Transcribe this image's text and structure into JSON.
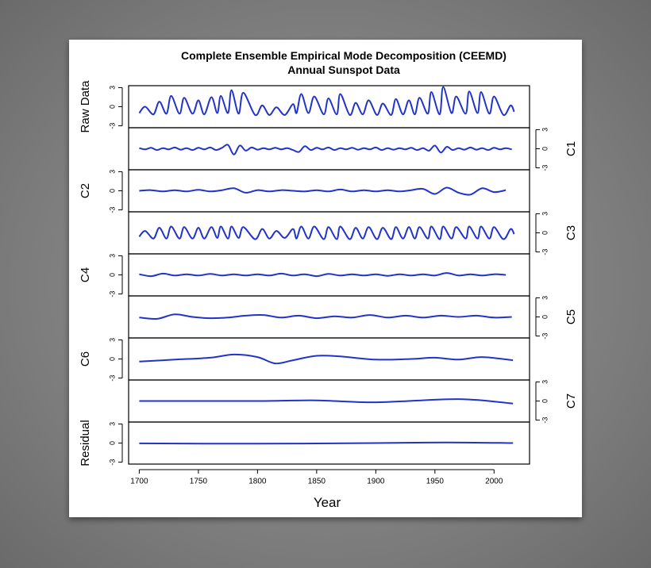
{
  "chart_data": [
    {
      "type": "line",
      "title": "Complete Ensemble Empirical Mode Decomposition (CEEMD)",
      "subtitle": "Annual Sunspot Data",
      "ylabel": "Raw Data",
      "axis_side": "left",
      "color": "#2233cc",
      "xlim": [
        1691,
        2030
      ],
      "ylim": [
        -3.3,
        3.3
      ],
      "yticks": [
        -3,
        0,
        3
      ],
      "x": [
        1700,
        1705,
        1712,
        1717,
        1723,
        1727,
        1734,
        1738,
        1745,
        1750,
        1755,
        1761,
        1766,
        1769,
        1775,
        1778,
        1784,
        1788,
        1798,
        1804,
        1810,
        1816,
        1823,
        1830,
        1833,
        1837,
        1843,
        1848,
        1856,
        1860,
        1867,
        1870,
        1878,
        1883,
        1889,
        1894,
        1901,
        1906,
        1913,
        1917,
        1923,
        1928,
        1933,
        1937,
        1944,
        1947,
        1954,
        1957,
        1964,
        1968,
        1976,
        1979,
        1986,
        1989,
        1996,
        2000,
        2008,
        2014,
        2017
      ],
      "values": [
        -1.0,
        0,
        -1.2,
        0.8,
        -1.1,
        1.7,
        -1.1,
        1.4,
        -1.1,
        1.0,
        -1.2,
        1.5,
        -1.0,
        1.7,
        -1.0,
        2.6,
        -1.1,
        2.2,
        -1.3,
        0.2,
        -1.3,
        -0.1,
        -1.3,
        0.4,
        -1.0,
        2.0,
        -1.0,
        1.6,
        -1.2,
        1.3,
        -1.2,
        2.0,
        -1.3,
        0.6,
        -1.2,
        1.0,
        -1.3,
        0.5,
        -1.3,
        1.2,
        -1.2,
        1.0,
        -1.2,
        1.4,
        -1.1,
        2.3,
        -1.2,
        3.1,
        -1.0,
        1.6,
        -1.1,
        2.4,
        -1.0,
        2.3,
        -1.1,
        1.6,
        -1.3,
        0.2,
        -0.8
      ]
    },
    {
      "type": "line",
      "ylabel": "C1",
      "axis_side": "right",
      "color": "#2233cc",
      "xlim": [
        1691,
        2030
      ],
      "ylim": [
        -3.3,
        3.3
      ],
      "yticks": [
        -3,
        0,
        3
      ],
      "x": [
        1700,
        1705,
        1710,
        1715,
        1720,
        1725,
        1730,
        1735,
        1740,
        1745,
        1750,
        1755,
        1760,
        1765,
        1770,
        1775,
        1780,
        1785,
        1790,
        1795,
        1800,
        1805,
        1810,
        1815,
        1820,
        1825,
        1830,
        1835,
        1840,
        1845,
        1850,
        1855,
        1860,
        1865,
        1870,
        1875,
        1880,
        1885,
        1890,
        1895,
        1900,
        1905,
        1910,
        1915,
        1920,
        1925,
        1930,
        1935,
        1940,
        1945,
        1950,
        1955,
        1960,
        1965,
        1970,
        1975,
        1980,
        1985,
        1990,
        1995,
        2000,
        2005,
        2010,
        2015
      ],
      "values": [
        0.1,
        -0.1,
        0.15,
        -0.2,
        0.1,
        -0.1,
        0.2,
        -0.15,
        0.1,
        -0.2,
        0.15,
        -0.1,
        0.2,
        -0.2,
        0.15,
        0.6,
        -0.9,
        0.5,
        -0.3,
        0.2,
        -0.15,
        0.1,
        -0.1,
        0.15,
        -0.1,
        0.1,
        -0.2,
        -0.5,
        0.4,
        -0.2,
        0.15,
        -0.1,
        0.2,
        -0.2,
        0.1,
        -0.1,
        0.15,
        -0.15,
        0.1,
        -0.1,
        0.2,
        -0.2,
        0.1,
        -0.15,
        0.1,
        -0.1,
        0.15,
        -0.2,
        0.1,
        -0.3,
        0.5,
        -0.6,
        0.3,
        -0.2,
        0.1,
        -0.15,
        0.2,
        -0.15,
        0.1,
        -0.2,
        0.15,
        -0.1,
        0.1,
        -0.1
      ]
    },
    {
      "type": "line",
      "ylabel": "C2",
      "axis_side": "left",
      "color": "#2233cc",
      "xlim": [
        1691,
        2030
      ],
      "ylim": [
        -3.3,
        3.3
      ],
      "yticks": [
        -3,
        0,
        3
      ],
      "x": [
        1700,
        1710,
        1720,
        1730,
        1740,
        1750,
        1760,
        1770,
        1780,
        1790,
        1800,
        1810,
        1820,
        1830,
        1840,
        1850,
        1860,
        1870,
        1880,
        1890,
        1900,
        1910,
        1920,
        1930,
        1940,
        1950,
        1960,
        1970,
        1980,
        1990,
        2000,
        2010
      ],
      "values": [
        0,
        0.1,
        -0.1,
        0.1,
        -0.1,
        0.15,
        -0.1,
        0.1,
        0.4,
        -0.3,
        0.1,
        -0.1,
        0.1,
        0,
        -0.1,
        0.1,
        -0.1,
        0.2,
        -0.1,
        0.1,
        -0.1,
        0.1,
        -0.1,
        0.1,
        0.3,
        -0.5,
        0.5,
        -0.3,
        -0.6,
        0.4,
        -0.2,
        0.1
      ]
    },
    {
      "type": "line",
      "ylabel": "C3",
      "axis_side": "right",
      "color": "#2233cc",
      "xlim": [
        1691,
        2030
      ],
      "ylim": [
        -3.3,
        3.3
      ],
      "yticks": [
        -3,
        0,
        3
      ],
      "x": [
        1700,
        1705,
        1712,
        1717,
        1723,
        1727,
        1734,
        1738,
        1745,
        1750,
        1755,
        1761,
        1766,
        1769,
        1775,
        1778,
        1784,
        1788,
        1798,
        1804,
        1810,
        1816,
        1823,
        1830,
        1833,
        1837,
        1843,
        1848,
        1856,
        1860,
        1867,
        1870,
        1878,
        1883,
        1889,
        1894,
        1901,
        1906,
        1913,
        1917,
        1923,
        1928,
        1933,
        1937,
        1944,
        1947,
        1954,
        1957,
        1964,
        1968,
        1976,
        1979,
        1986,
        1989,
        1996,
        2000,
        2008,
        2014,
        2017
      ],
      "values": [
        -0.6,
        0.3,
        -0.9,
        0.8,
        -0.9,
        1.0,
        -0.9,
        0.9,
        -0.9,
        0.8,
        -0.9,
        0.9,
        -0.8,
        1.0,
        -0.9,
        1.0,
        -0.8,
        0.9,
        -1.0,
        0.6,
        -0.9,
        0.3,
        -0.8,
        0.6,
        -0.9,
        1.0,
        -0.9,
        1.0,
        -1.0,
        0.9,
        -1.0,
        1.0,
        -1.0,
        0.8,
        -0.9,
        0.9,
        -1.0,
        0.8,
        -1.0,
        0.9,
        -0.9,
        0.9,
        -0.9,
        0.9,
        -0.9,
        1.0,
        -1.0,
        1.0,
        -0.9,
        0.9,
        -0.9,
        1.0,
        -0.9,
        1.0,
        -0.9,
        0.9,
        -1.0,
        0.6,
        -0.2
      ]
    },
    {
      "type": "line",
      "ylabel": "C4",
      "axis_side": "left",
      "color": "#2233cc",
      "xlim": [
        1691,
        2030
      ],
      "ylim": [
        -3.3,
        3.3
      ],
      "yticks": [
        -3,
        0,
        3
      ],
      "x": [
        1700,
        1710,
        1720,
        1730,
        1740,
        1750,
        1760,
        1770,
        1780,
        1790,
        1800,
        1810,
        1820,
        1830,
        1840,
        1850,
        1860,
        1870,
        1880,
        1890,
        1900,
        1910,
        1920,
        1930,
        1940,
        1950,
        1960,
        1970,
        1980,
        1990,
        2000,
        2010
      ],
      "values": [
        0.1,
        -0.2,
        0.2,
        -0.1,
        0.1,
        -0.1,
        0.15,
        -0.1,
        0.1,
        -0.1,
        0.1,
        -0.1,
        0.2,
        -0.1,
        0.1,
        -0.2,
        0.15,
        -0.1,
        0.1,
        -0.1,
        0.1,
        -0.15,
        0.1,
        -0.1,
        0.1,
        -0.1,
        0.3,
        -0.1,
        0.1,
        -0.1,
        0.1,
        0
      ]
    },
    {
      "type": "line",
      "ylabel": "C5",
      "axis_side": "right",
      "color": "#2233cc",
      "xlim": [
        1691,
        2030
      ],
      "ylim": [
        -3.3,
        3.3
      ],
      "yticks": [
        -3,
        0,
        3
      ],
      "x": [
        1700,
        1715,
        1730,
        1745,
        1760,
        1775,
        1790,
        1805,
        1820,
        1835,
        1850,
        1865,
        1880,
        1895,
        1910,
        1925,
        1940,
        1955,
        1970,
        1985,
        2000,
        2015
      ],
      "values": [
        -0.1,
        -0.3,
        0.4,
        0,
        -0.2,
        -0.1,
        0.2,
        0.3,
        -0.1,
        0.2,
        -0.2,
        0.1,
        -0.1,
        0.3,
        -0.1,
        0.2,
        -0.1,
        0.2,
        0,
        0.2,
        -0.1,
        0
      ]
    },
    {
      "type": "line",
      "ylabel": "C6",
      "axis_side": "left",
      "color": "#2233cc",
      "xlim": [
        1691,
        2030
      ],
      "ylim": [
        -3.3,
        3.3
      ],
      "yticks": [
        -3,
        0,
        3
      ],
      "x": [
        1700,
        1730,
        1760,
        1780,
        1800,
        1815,
        1830,
        1850,
        1870,
        1900,
        1930,
        1950,
        1970,
        1990,
        2016
      ],
      "values": [
        -0.4,
        -0.1,
        0.2,
        0.7,
        0.3,
        -0.7,
        -0.2,
        0.5,
        0.4,
        -0.1,
        0,
        0.2,
        -0.1,
        0.3,
        -0.2
      ]
    },
    {
      "type": "line",
      "ylabel": "C7",
      "axis_side": "right",
      "color": "#2233cc",
      "xlim": [
        1691,
        2030
      ],
      "ylim": [
        -3.3,
        3.3
      ],
      "yticks": [
        -3,
        0,
        3
      ],
      "x": [
        1700,
        1750,
        1800,
        1850,
        1900,
        1970,
        2016
      ],
      "values": [
        0,
        0,
        0,
        0.1,
        -0.2,
        0.3,
        -0.4
      ]
    },
    {
      "type": "line",
      "ylabel": "Residual",
      "axis_side": "left",
      "color": "#2233cc",
      "xlim": [
        1691,
        2030
      ],
      "ylim": [
        -3.3,
        3.3
      ],
      "yticks": [
        -3,
        0,
        3
      ],
      "xlabel": "Year",
      "xticks": [
        1700,
        1750,
        1800,
        1850,
        1900,
        1950,
        2000
      ],
      "x": [
        1700,
        1800,
        1900,
        1960,
        2016
      ],
      "values": [
        -0.05,
        -0.1,
        0,
        0.1,
        0
      ]
    }
  ]
}
